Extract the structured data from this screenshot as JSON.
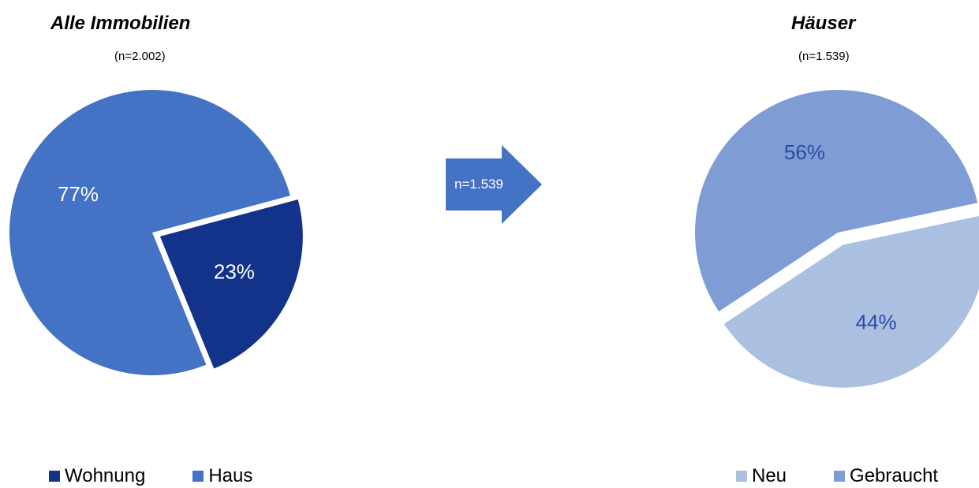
{
  "chart_data": [
    {
      "type": "pie",
      "title": "Alle Immobilien",
      "subtitle": "(n=2.002)",
      "slices": [
        {
          "name": "Wohnung",
          "value": 23,
          "label": "23%",
          "color": "#13338a",
          "label_color": "#ffffff",
          "exploded": true
        },
        {
          "name": "Haus",
          "value": 77,
          "label": "77%",
          "color": "#4472c4",
          "label_color": "#ffffff",
          "exploded": false
        }
      ],
      "legend": "bottom-left"
    },
    {
      "type": "pie",
      "title": "Häuser",
      "subtitle": "(n=1.539)",
      "slices": [
        {
          "name": "Neu",
          "value": 44,
          "label": "44%",
          "color": "#abbfe0",
          "label_color": "#2a4aa6",
          "exploded": true
        },
        {
          "name": "Gebraucht",
          "value": 56,
          "label": "56%",
          "color": "#7f9dd4",
          "label_color": "#2a4aa6",
          "exploded": false
        }
      ],
      "legend": "bottom-right"
    }
  ],
  "arrow": {
    "label": "n=1.539",
    "color": "#4472c4"
  }
}
